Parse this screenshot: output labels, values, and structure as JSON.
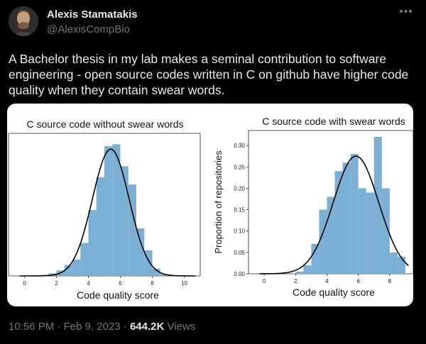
{
  "tweet": {
    "author_name": "Alexis Stamatakis",
    "author_handle": "@AlexisCompBio",
    "more_icon": "more-horizontal-icon",
    "body": "A Bachelor thesis in my lab makes a seminal contribution to software engineering - open source codes written in C on github have higher code quality when they contain swear words.",
    "time": "10:56 PM",
    "date": "Feb 9, 2023",
    "separator": "·",
    "views_count": "644.2K",
    "views_label": "Views"
  },
  "chart_data": [
    {
      "type": "bar",
      "title": "C source code without swear words",
      "xlabel": "Code quality score",
      "ylabel": "",
      "xlim": [
        -1,
        11
      ],
      "ylim": [
        0,
        0.39
      ],
      "x_ticks": [
        "0",
        "2",
        "4",
        "6",
        "8",
        "10"
      ],
      "y_ticks": [],
      "bin_width": 0.5,
      "bins_start": [
        1.0,
        1.5,
        2.0,
        2.5,
        3.0,
        3.5,
        4.0,
        4.5,
        5.0,
        5.5,
        6.0,
        6.5,
        7.0,
        7.5,
        8.0,
        8.5
      ],
      "values": [
        0.003,
        0.007,
        0.015,
        0.03,
        0.045,
        0.09,
        0.18,
        0.27,
        0.355,
        0.36,
        0.3,
        0.25,
        0.13,
        0.07,
        0.02,
        0.005
      ],
      "fit_curve": {
        "type": "normal",
        "mean": 5.4,
        "sd": 1.15
      },
      "bar_color": "#7bafd4",
      "curve_color": "#000000"
    },
    {
      "type": "bar",
      "title": "C source code with swear words",
      "xlabel": "Code quality score",
      "ylabel": "Proportion of repositories",
      "xlim": [
        -1,
        9.5
      ],
      "ylim": [
        0,
        0.335
      ],
      "x_ticks": [
        "0",
        "2",
        "4",
        "6",
        "8"
      ],
      "y_ticks": [
        "0.00",
        "0.05",
        "0.10",
        "0.15",
        "0.20",
        "0.25",
        "0.30"
      ],
      "bin_width": 0.5,
      "bins_start": [
        2.0,
        2.5,
        3.0,
        3.5,
        4.0,
        4.5,
        5.0,
        5.5,
        6.0,
        6.5,
        7.0,
        7.5,
        8.0,
        8.5
      ],
      "values": [
        0.005,
        0.02,
        0.07,
        0.15,
        0.18,
        0.24,
        0.26,
        0.28,
        0.2,
        0.19,
        0.32,
        0.2,
        0.05,
        0.04
      ],
      "fit_curve": {
        "type": "normal",
        "mean": 5.85,
        "sd": 1.45
      },
      "bar_color": "#7bafd4",
      "curve_color": "#000000"
    }
  ]
}
